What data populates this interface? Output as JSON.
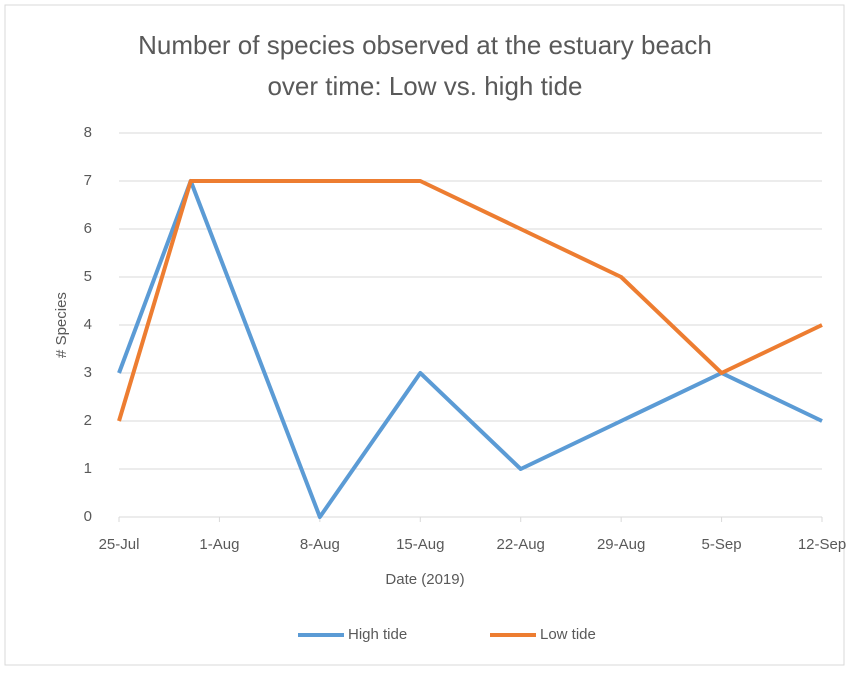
{
  "chart_data": {
    "type": "line",
    "title": [
      "Number of species observed at the estuary beach",
      "over time: Low vs. high tide"
    ],
    "x_label": "Date (2019)",
    "y_label": "# Species",
    "x": [
      "2019-07-25",
      "2019-07-30",
      "2019-08-08",
      "2019-08-15",
      "2019-08-22",
      "2019-08-29",
      "2019-09-05",
      "2019-09-12"
    ],
    "series": [
      {
        "name": "High tide",
        "color": "#5b9bd5",
        "values": [
          3,
          7,
          0,
          3,
          1,
          2,
          3,
          2
        ]
      },
      {
        "name": "Low tide",
        "color": "#ed7d31",
        "values": [
          2,
          7,
          7,
          7,
          6,
          5,
          3,
          4
        ]
      }
    ],
    "xlim": [
      "2019-07-25",
      "2019-09-12"
    ],
    "xticks": [
      {
        "value": "2019-07-25",
        "label": "25-Jul"
      },
      {
        "value": "2019-08-01",
        "label": "1-Aug"
      },
      {
        "value": "2019-08-08",
        "label": "8-Aug"
      },
      {
        "value": "2019-08-15",
        "label": "15-Aug"
      },
      {
        "value": "2019-08-22",
        "label": "22-Aug"
      },
      {
        "value": "2019-08-29",
        "label": "29-Aug"
      },
      {
        "value": "2019-09-05",
        "label": "5-Sep"
      },
      {
        "value": "2019-09-12",
        "label": "12-Sep"
      }
    ],
    "ylim": [
      0,
      8
    ],
    "yticks": [
      0,
      1,
      2,
      3,
      4,
      5,
      6,
      7,
      8
    ],
    "grid": true,
    "legend": "bottom"
  }
}
